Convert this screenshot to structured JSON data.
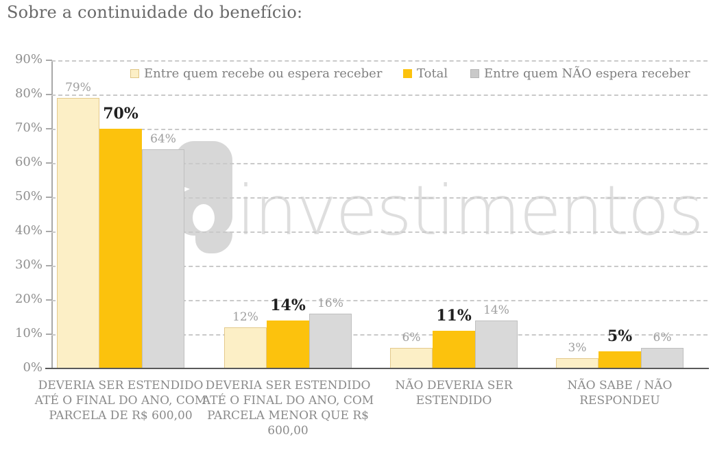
{
  "title": "Sobre a continuidade do benefício:",
  "watermark": {
    "text": "investimentos",
    "logo": "g-bubble-logo",
    "color": "#DEDEDE"
  },
  "colors": {
    "grid": "#C9C9C9",
    "axis_line": "#595959",
    "tick": "#A8A8A8",
    "title": "#696969",
    "muted_label": "#9E9E9E",
    "bold_label": "#1F1F1F",
    "category_label": "#8A8A8A",
    "legend_text": "#808080"
  },
  "chart_data": {
    "type": "bar",
    "title": "Sobre a continuidade do benefício:",
    "categories": [
      "DEVERIA SER ESTENDIDO ATÉ O FINAL DO ANO, COM PARCELA DE R$ 600,00",
      "DEVERIA SER ESTENDIDO ATÉ O FINAL DO ANO, COM PARCELA MENOR QUE R$ 600,00",
      "NÃO DEVERIA SER ESTENDIDO",
      "NÃO SABE / NÃO RESPONDEU"
    ],
    "series": [
      {
        "name": "Entre quem recebe ou espera receber",
        "values": [
          79,
          12,
          6,
          3
        ],
        "labels": [
          "79%",
          "12%",
          "6%",
          "3%"
        ],
        "color": "#FCEFC6",
        "border_color": "#E3C98C",
        "label_style": "muted"
      },
      {
        "name": "Total",
        "values": [
          70,
          14,
          11,
          5
        ],
        "labels": [
          "70%",
          "14%",
          "11%",
          "5%"
        ],
        "color": "#FCC20D",
        "border_color": "none",
        "label_style": "bold"
      },
      {
        "name": "Entre quem NÃO espera receber",
        "values": [
          64,
          16,
          14,
          6
        ],
        "labels": [
          "64%",
          "16%",
          "14%",
          "6%"
        ],
        "color": "#D9D9D9",
        "border_color": "#BFBFBF",
        "label_style": "muted"
      }
    ],
    "xlabel": "",
    "ylabel": "",
    "ylim": [
      0,
      90
    ],
    "ytick_step": 10,
    "ytick_labels": [
      "0%",
      "10%",
      "20%",
      "30%",
      "40%",
      "50%",
      "60%",
      "70%",
      "80%",
      "90%"
    ],
    "grid": "horizontal dashed",
    "legend_position": "top inside"
  }
}
